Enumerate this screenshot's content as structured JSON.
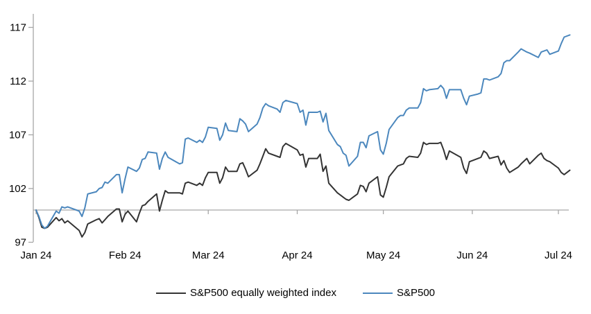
{
  "page": {
    "background": "#ffffff",
    "text_color": "#000000"
  },
  "chart_data": {
    "type": "line",
    "title": "",
    "xlabel": "",
    "ylabel": "",
    "grid": "off",
    "legend_position": "bottom",
    "axis_color": "#a6a6a6",
    "baseline_value": 100,
    "ylim": [
      97,
      118.3
    ],
    "y_ticks": [
      97,
      102,
      107,
      112,
      117
    ],
    "x_tick_labels": [
      "Jan 24",
      "Feb 24",
      "Mar 24",
      "Apr 24",
      "May 24",
      "Jun 24",
      "Jul 24"
    ],
    "month_tick_days": [
      0,
      31,
      60,
      91,
      121,
      152,
      182
    ],
    "x_unit": "days since 1 Jan 2024, indexed to 100 on 1 Jan 2024",
    "days": [
      0,
      1,
      2,
      3,
      4,
      7,
      8,
      9,
      10,
      11,
      15,
      16,
      17,
      18,
      21,
      22,
      23,
      24,
      25,
      28,
      29,
      30,
      31,
      32,
      35,
      36,
      37,
      38,
      39,
      42,
      43,
      44,
      45,
      46,
      50,
      51,
      52,
      53,
      56,
      57,
      58,
      59,
      60,
      63,
      64,
      65,
      66,
      67,
      70,
      71,
      72,
      73,
      74,
      77,
      78,
      79,
      80,
      81,
      84,
      85,
      86,
      87,
      91,
      92,
      93,
      94,
      95,
      98,
      99,
      100,
      101,
      102,
      105,
      106,
      107,
      108,
      109,
      112,
      113,
      114,
      115,
      116,
      119,
      120,
      121,
      122,
      123,
      126,
      127,
      128,
      129,
      130,
      133,
      134,
      135,
      136,
      137,
      140,
      141,
      142,
      143,
      144,
      148,
      149,
      150,
      151,
      154,
      155,
      156,
      157,
      158,
      161,
      162,
      163,
      164,
      165,
      168,
      169,
      171,
      172,
      175,
      176,
      177,
      178,
      179,
      182,
      183,
      184,
      186
    ],
    "series": [
      {
        "name": "S&P500 equally weighted index",
        "color": "#333333",
        "values": [
          100,
          99.3,
          98.4,
          98.3,
          98.4,
          99.3,
          99.0,
          99.2,
          98.8,
          99.0,
          98.1,
          97.5,
          97.9,
          98.7,
          99.1,
          99.2,
          98.8,
          99.1,
          99.4,
          100.1,
          100.1,
          98.9,
          99.6,
          99.9,
          98.9,
          99.7,
          100.4,
          100.5,
          100.8,
          101.5,
          99.9,
          100.9,
          101.8,
          101.6,
          101.6,
          101.5,
          102.5,
          102.6,
          102.3,
          102.5,
          102.3,
          103.0,
          103.5,
          103.5,
          102.5,
          103.0,
          104.0,
          103.6,
          103.6,
          104.3,
          104.4,
          103.8,
          103.1,
          103.7,
          104.3,
          105.0,
          105.7,
          105.3,
          105.0,
          104.9,
          105.9,
          106.2,
          105.6,
          105.1,
          105.2,
          104.0,
          104.8,
          104.8,
          105.2,
          103.6,
          104.1,
          102.5,
          101.6,
          101.4,
          101.2,
          101.0,
          100.9,
          101.5,
          102.3,
          102.2,
          101.7,
          102.5,
          103.1,
          101.4,
          101.2,
          102.1,
          103.1,
          104.1,
          104.2,
          104.3,
          104.8,
          105.0,
          104.9,
          105.3,
          106.3,
          106.1,
          106.2,
          106.2,
          106.3,
          105.6,
          104.7,
          105.5,
          104.9,
          103.9,
          103.4,
          104.5,
          104.8,
          104.9,
          105.5,
          105.3,
          104.8,
          105.0,
          104.2,
          104.6,
          103.9,
          103.5,
          104.0,
          104.3,
          104.8,
          104.3,
          105.1,
          105.3,
          104.8,
          104.6,
          104.5,
          103.9,
          103.5,
          103.3,
          103.7
        ]
      },
      {
        "name": "S&P500",
        "color": "#4b87bd",
        "values": [
          100,
          99.4,
          98.6,
          98.3,
          98.5,
          99.9,
          99.7,
          100.3,
          100.2,
          100.3,
          99.9,
          99.4,
          100.2,
          101.5,
          101.7,
          102.0,
          102.1,
          102.6,
          102.5,
          103.3,
          103.3,
          101.6,
          102.9,
          104.0,
          103.6,
          103.9,
          104.7,
          104.8,
          105.4,
          105.3,
          103.8,
          104.8,
          105.4,
          104.9,
          104.3,
          104.4,
          106.6,
          106.7,
          106.3,
          106.5,
          106.3,
          106.8,
          107.7,
          107.6,
          106.5,
          107.0,
          108.1,
          107.4,
          107.3,
          108.5,
          108.3,
          108.0,
          107.3,
          108.0,
          108.6,
          109.5,
          109.9,
          109.7,
          109.4,
          109.1,
          110.0,
          110.2,
          109.9,
          109.1,
          109.3,
          107.9,
          109.1,
          109.1,
          109.2,
          108.2,
          109.0,
          107.4,
          106.1,
          105.9,
          105.3,
          105.1,
          104.1,
          105.0,
          106.3,
          106.3,
          105.8,
          106.9,
          107.3,
          105.6,
          105.2,
          106.2,
          107.5,
          108.6,
          108.8,
          108.8,
          109.3,
          109.5,
          109.5,
          110.0,
          111.3,
          111.1,
          111.2,
          111.3,
          111.6,
          111.3,
          110.4,
          111.2,
          111.2,
          110.4,
          109.8,
          110.6,
          110.8,
          110.9,
          112.2,
          112.2,
          112.1,
          112.4,
          112.7,
          113.7,
          113.9,
          113.9,
          114.7,
          115.0,
          114.7,
          114.6,
          114.2,
          114.7,
          114.8,
          114.9,
          114.5,
          114.8,
          115.5,
          116.1,
          116.3
        ]
      }
    ]
  },
  "legend": {
    "item1": "S&P500 equally weighted index",
    "item2": "S&P500"
  }
}
